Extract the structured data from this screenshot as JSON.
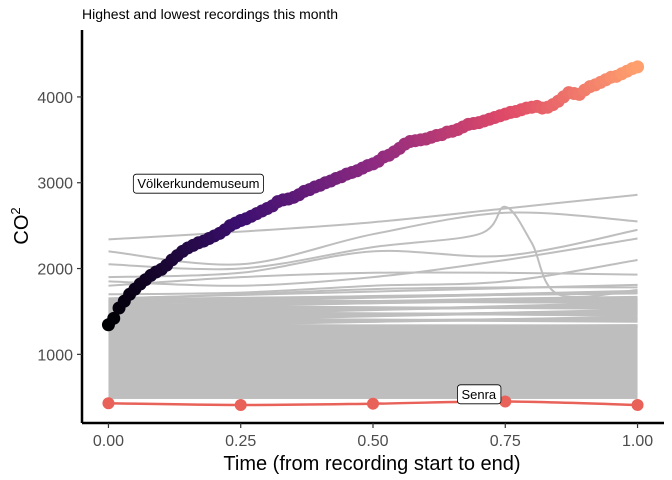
{
  "chart_data": {
    "type": "line",
    "title": "Highest and lowest recordings this month",
    "xlabel": "Time (from recording start to end)",
    "ylabel": "CO",
    "ylabel_superscript": "2",
    "xlim": [
      -0.05,
      1.05
    ],
    "ylim": [
      200,
      4780
    ],
    "x_ticks": [
      0.0,
      0.25,
      0.5,
      0.75,
      1.0
    ],
    "x_tick_labels": [
      "0.00",
      "0.25",
      "0.50",
      "0.75",
      "1.00"
    ],
    "y_ticks": [
      1000,
      2000,
      3000,
      4000
    ],
    "y_tick_labels": [
      "1000",
      "2000",
      "3000",
      "4000"
    ],
    "grid": false,
    "legend": "none",
    "background_color": "#bebebe",
    "highest_gradient": [
      "#000004",
      "#3b0f70",
      "#8c2981",
      "#de4968",
      "#fe9f6d"
    ],
    "lowest_color": "#e8625a",
    "annotations": [
      {
        "text": "Völkerkundemuseum",
        "x": 0.17,
        "y": 2995
      },
      {
        "text": "Senra",
        "x": 0.7,
        "y": 540
      }
    ],
    "series": [
      {
        "name": "Völkerkundemuseum",
        "role": "highest",
        "x": [
          0.0,
          0.01,
          0.02,
          0.03,
          0.04,
          0.05,
          0.06,
          0.07,
          0.08,
          0.09,
          0.1,
          0.11,
          0.12,
          0.13,
          0.14,
          0.15,
          0.16,
          0.17,
          0.18,
          0.19,
          0.2,
          0.21,
          0.22,
          0.23,
          0.24,
          0.25,
          0.26,
          0.27,
          0.28,
          0.29,
          0.3,
          0.31,
          0.32,
          0.33,
          0.34,
          0.35,
          0.36,
          0.37,
          0.38,
          0.39,
          0.4,
          0.41,
          0.42,
          0.43,
          0.44,
          0.45,
          0.46,
          0.47,
          0.48,
          0.49,
          0.5,
          0.51,
          0.52,
          0.53,
          0.54,
          0.55,
          0.56,
          0.57,
          0.58,
          0.59,
          0.6,
          0.61,
          0.62,
          0.63,
          0.64,
          0.65,
          0.66,
          0.67,
          0.68,
          0.69,
          0.7,
          0.71,
          0.72,
          0.73,
          0.74,
          0.75,
          0.76,
          0.77,
          0.78,
          0.79,
          0.8,
          0.81,
          0.82,
          0.83,
          0.84,
          0.85,
          0.86,
          0.87,
          0.88,
          0.89,
          0.9,
          0.91,
          0.92,
          0.93,
          0.94,
          0.95,
          0.96,
          0.97,
          0.98,
          0.99,
          1.0
        ],
        "y": [
          1345,
          1420,
          1540,
          1620,
          1700,
          1760,
          1820,
          1870,
          1920,
          1960,
          1990,
          2040,
          2100,
          2150,
          2200,
          2240,
          2270,
          2300,
          2320,
          2350,
          2380,
          2410,
          2450,
          2500,
          2530,
          2560,
          2580,
          2610,
          2640,
          2670,
          2700,
          2730,
          2780,
          2800,
          2810,
          2830,
          2860,
          2900,
          2920,
          2950,
          2970,
          3000,
          3020,
          3050,
          3070,
          3100,
          3120,
          3140,
          3170,
          3200,
          3220,
          3250,
          3300,
          3320,
          3360,
          3400,
          3450,
          3480,
          3490,
          3500,
          3510,
          3530,
          3550,
          3560,
          3590,
          3600,
          3620,
          3650,
          3680,
          3690,
          3700,
          3720,
          3740,
          3760,
          3780,
          3800,
          3820,
          3830,
          3850,
          3870,
          3880,
          3890,
          3870,
          3880,
          3910,
          3950,
          4000,
          4050,
          4040,
          4030,
          4080,
          4120,
          4140,
          4170,
          4200,
          4230,
          4240,
          4270,
          4300,
          4330,
          4350
        ]
      },
      {
        "name": "Senra",
        "role": "lowest",
        "x": [
          0.0,
          0.25,
          0.5,
          0.75,
          1.0
        ],
        "y": [
          430,
          410,
          425,
          450,
          410
        ]
      },
      {
        "name": "",
        "role": "other",
        "x": [
          0.0,
          0.25,
          0.5,
          0.75,
          1.0
        ],
        "y": [
          2340,
          2430,
          2540,
          2700,
          2860
        ]
      },
      {
        "name": "",
        "role": "other",
        "x": [
          0.0,
          0.25,
          0.5,
          0.75,
          1.0
        ],
        "y": [
          2200,
          2050,
          2400,
          2650,
          2550
        ]
      },
      {
        "name": "",
        "role": "other",
        "x": [
          0.0,
          0.25,
          0.5,
          0.7,
          0.75,
          0.8,
          0.85,
          1.0
        ],
        "y": [
          2050,
          2000,
          2250,
          2400,
          2720,
          2300,
          1700,
          1750
        ]
      },
      {
        "name": "",
        "role": "other",
        "x": [
          0.0,
          0.25,
          0.5,
          0.75,
          1.0
        ],
        "y": [
          1900,
          1950,
          2200,
          2150,
          2450
        ]
      },
      {
        "name": "",
        "role": "other",
        "x": [
          0.0,
          0.25,
          0.5,
          0.75,
          1.0
        ],
        "y": [
          1850,
          1800,
          1900,
          2100,
          2350
        ]
      },
      {
        "name": "",
        "role": "other",
        "x": [
          0.0,
          0.25,
          0.5,
          0.75,
          1.0
        ],
        "y": [
          1800,
          1900,
          1950,
          1950,
          1930
        ]
      },
      {
        "name": "",
        "role": "other",
        "x": [
          0.0,
          0.25,
          0.5,
          0.75,
          1.0
        ],
        "y": [
          1700,
          1720,
          1800,
          1850,
          2100
        ]
      },
      {
        "name": "",
        "role": "other",
        "x": [
          0.0,
          0.25,
          0.5,
          0.75,
          1.0
        ],
        "y": [
          1650,
          1700,
          1760,
          1780,
          1780
        ]
      },
      {
        "name": "",
        "role": "other",
        "x": [
          0.0,
          0.25,
          0.5,
          0.75,
          1.0
        ],
        "y": [
          1600,
          1650,
          1680,
          1700,
          1720
        ]
      },
      {
        "name": "",
        "role": "other",
        "x": [
          0.0,
          0.25,
          0.5,
          0.75,
          1.0
        ],
        "y": [
          1550,
          1600,
          1620,
          1650,
          1670
        ]
      }
    ]
  }
}
